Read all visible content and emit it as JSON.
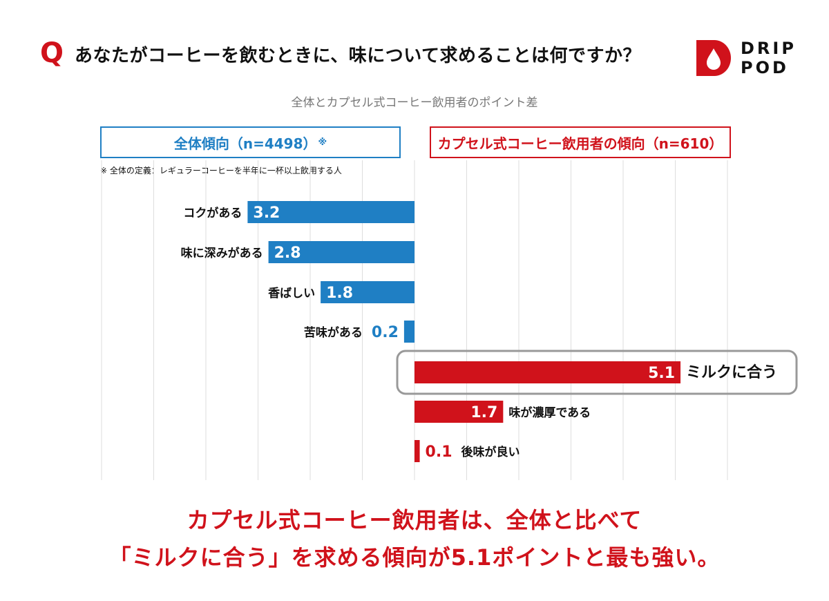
{
  "header": {
    "q_mark": "Q",
    "question": "あなたがコーヒーを飲むときに、味について求めることは何ですか？"
  },
  "logo": {
    "line1": "DRIP",
    "line2": "POD",
    "icon": "drop-icon",
    "color": "#d0121b"
  },
  "subtitle": "全体とカプセル式コーヒー飲用者のポイント差",
  "legend": {
    "overall_label": "全体傾向（n=4498）",
    "overall_mark": "※",
    "capsule_label": "カプセル式コーヒー飲用者の傾向（n=610）"
  },
  "footnote": "※ 全体の定義：レギュラーコーヒーを半年に一杯以上飲用する人",
  "colors": {
    "overall": "#1f7fc4",
    "capsule": "#d0121b",
    "grid": "#dddddd",
    "highlight_border": "#999999"
  },
  "chart_data": {
    "type": "bar",
    "orientation": "horizontal",
    "title": "全体とカプセル式コーヒー飲用者のポイント差",
    "grid": true,
    "series": [
      {
        "name": "全体傾向（n=4498）",
        "direction": "left",
        "color": "#1f7fc4",
        "categories": [
          "コクがある",
          "味に深みがある",
          "香ばしい",
          "苦味がある"
        ],
        "values": [
          3.2,
          2.8,
          1.8,
          0.2
        ],
        "labels": [
          "3.2",
          "2.8",
          "1.8",
          "0.2"
        ]
      },
      {
        "name": "カプセル式コーヒー飲用者の傾向（n=610）",
        "direction": "right",
        "color": "#d0121b",
        "categories": [
          "ミルクに合う",
          "味が濃厚である",
          "後味が良い"
        ],
        "values": [
          5.1,
          1.7,
          0.1
        ],
        "labels": [
          "5.1",
          "1.7",
          "0.1"
        ]
      }
    ],
    "highlighted_category": "ミルクに合う"
  },
  "conclusion": {
    "line1": "カプセル式コーヒー飲用者は、全体と比べて",
    "line2": "「ミルクに合う」を求める傾向が5.1ポイントと最も強い。"
  }
}
